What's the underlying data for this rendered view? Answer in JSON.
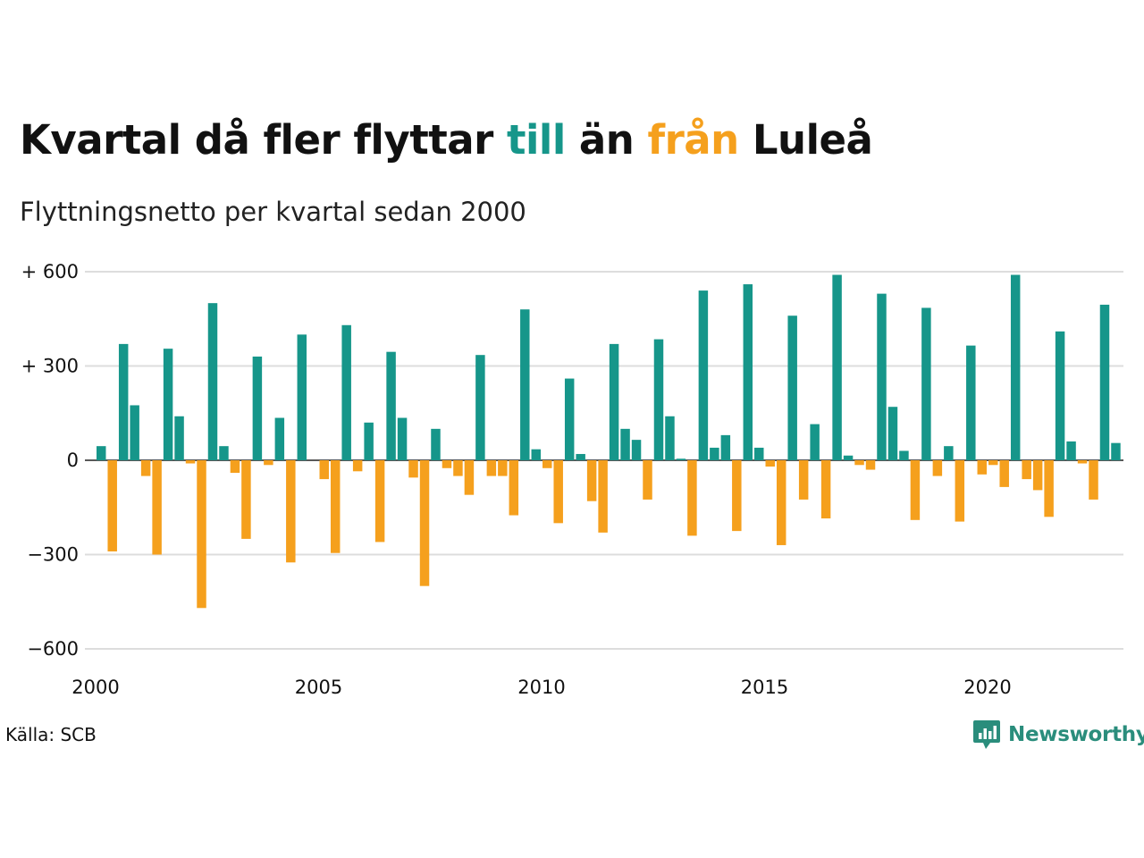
{
  "title": {
    "part1": "Kvartal då fler flyttar ",
    "word_pos": "till",
    "part2": " än ",
    "word_neg": "från",
    "part3": " Luleå"
  },
  "subtitle": "Flyttningsnetto per kvartal sedan 2000",
  "source": "Källa: SCB",
  "logo": {
    "text": "Newsworthy",
    "icon": "chart-speech-bubble-icon"
  },
  "colors": {
    "positive": "#16968a",
    "negative": "#f5a01d",
    "grid": "#dddddd",
    "logo": "#2a8d7c"
  },
  "chart_data": {
    "type": "bar",
    "title": "Kvartal då fler flyttar till än från Luleå",
    "subtitle": "Flyttningsnetto per kvartal sedan 2000",
    "ylim": [
      -600,
      600
    ],
    "xlim": [
      2000,
      2023.25
    ],
    "yticks": [
      600,
      300,
      0,
      -300,
      -600
    ],
    "ytick_labels": [
      "+ 600",
      "+ 300",
      "0",
      "−300",
      "−600"
    ],
    "xticks": [
      2000,
      2005,
      2010,
      2015,
      2020
    ],
    "xtick_labels": [
      "2000",
      "2005",
      "2010",
      "2015",
      "2020"
    ],
    "grid": true,
    "x_start": 2000,
    "values": [
      45,
      -290,
      370,
      175,
      -50,
      -300,
      355,
      140,
      -10,
      -470,
      500,
      45,
      -40,
      -250,
      330,
      -15,
      135,
      -325,
      400,
      0,
      -60,
      -295,
      430,
      -35,
      120,
      -260,
      345,
      135,
      -55,
      -400,
      100,
      -25,
      -50,
      -110,
      335,
      -50,
      -50,
      -175,
      480,
      35,
      -25,
      -200,
      260,
      20,
      -130,
      -230,
      370,
      100,
      65,
      -125,
      385,
      140,
      5,
      -240,
      540,
      40,
      80,
      -225,
      560,
      40,
      -20,
      -270,
      460,
      -125,
      115,
      -185,
      590,
      15,
      -15,
      -30,
      530,
      170,
      30,
      -190,
      485,
      -50,
      45,
      -195,
      365,
      -45,
      -15,
      -85,
      590,
      -60,
      -95,
      -180,
      410,
      60,
      -10,
      -125,
      495,
      55
    ]
  }
}
